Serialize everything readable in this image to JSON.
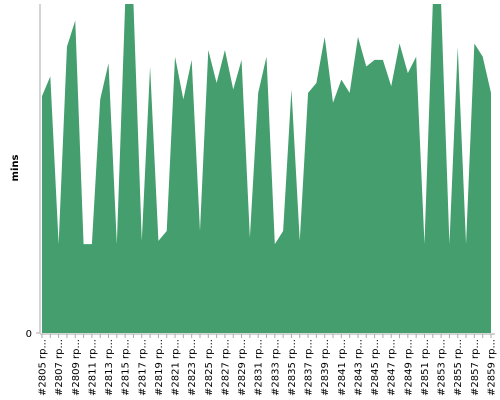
{
  "chart_data": {
    "type": "area",
    "y_label": "mins",
    "color": "#449e6e",
    "categories": [
      "#2805 rp...",
      null,
      "#2807 rp...",
      null,
      "#2809 rp...",
      null,
      "#2811 rp...",
      null,
      "#2813 rp...",
      null,
      "#2815 rp...",
      null,
      "#2817 rp...",
      null,
      "#2819 rp...",
      null,
      "#2821 rp...",
      null,
      "#2823 rp...",
      null,
      "#2825 rp...",
      null,
      "#2827 rp...",
      null,
      "#2829 rp...",
      null,
      "#2831 rp...",
      null,
      "#2833 rp...",
      null,
      "#2835 rp...",
      null,
      "#2837 rp...",
      null,
      "#2839 rp...",
      null,
      "#2841 rp...",
      null,
      "#2843 rp...",
      null,
      "#2845 rp...",
      null,
      "#2847 rp...",
      null,
      "#2849 rp...",
      null,
      "#2851 rp...",
      null,
      "#2853 rp...",
      null,
      "#2855 rp...",
      null,
      "#2857 rp...",
      null,
      "#2859 rp..."
    ],
    "values": [
      72,
      78,
      27,
      87,
      95,
      27,
      27,
      71,
      82,
      27,
      100,
      100,
      28,
      81,
      28,
      31,
      84,
      71,
      83,
      31,
      86,
      76,
      86,
      74,
      83,
      29,
      73,
      84,
      27,
      31,
      74,
      28,
      73,
      76,
      90,
      70,
      77,
      73,
      90,
      81,
      83,
      83,
      75,
      88,
      79,
      84,
      27,
      100,
      100,
      27,
      87,
      27,
      88,
      84,
      73
    ],
    "ylim": [
      0,
      100
    ],
    "yticks": [
      0
    ]
  }
}
